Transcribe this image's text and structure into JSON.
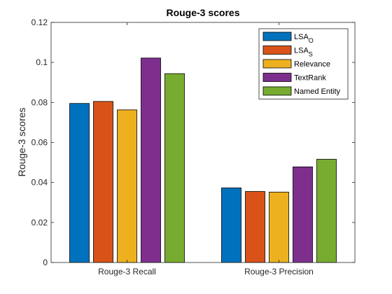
{
  "chart_data": {
    "type": "bar",
    "title": "Rouge-3 scores",
    "xlabel": "",
    "ylabel": "Rouge-3 scores",
    "categories": [
      "Rouge-3 Recall",
      "Rouge-3 Precision"
    ],
    "ylim": [
      0,
      0.12
    ],
    "yticks": [
      "0",
      "0.02",
      "0.04",
      "0.06",
      "0.08",
      "0.1",
      "0.12"
    ],
    "grid": false,
    "legend_position": "top-right",
    "series": [
      {
        "name": "LSA",
        "name_subscript": "O",
        "color": "#0072BD",
        "values": [
          0.0795,
          0.0373
        ]
      },
      {
        "name": "LSA",
        "name_subscript": "S",
        "color": "#D95319",
        "values": [
          0.0805,
          0.0355
        ]
      },
      {
        "name": "Relevance",
        "name_subscript": "",
        "color": "#EDB120",
        "values": [
          0.0763,
          0.0352
        ]
      },
      {
        "name": "TextRank",
        "name_subscript": "",
        "color": "#7E2F8E",
        "values": [
          0.1022,
          0.0478
        ]
      },
      {
        "name": "Named Entity",
        "name_subscript": "",
        "color": "#77AC30",
        "values": [
          0.0944,
          0.0516
        ]
      }
    ]
  }
}
